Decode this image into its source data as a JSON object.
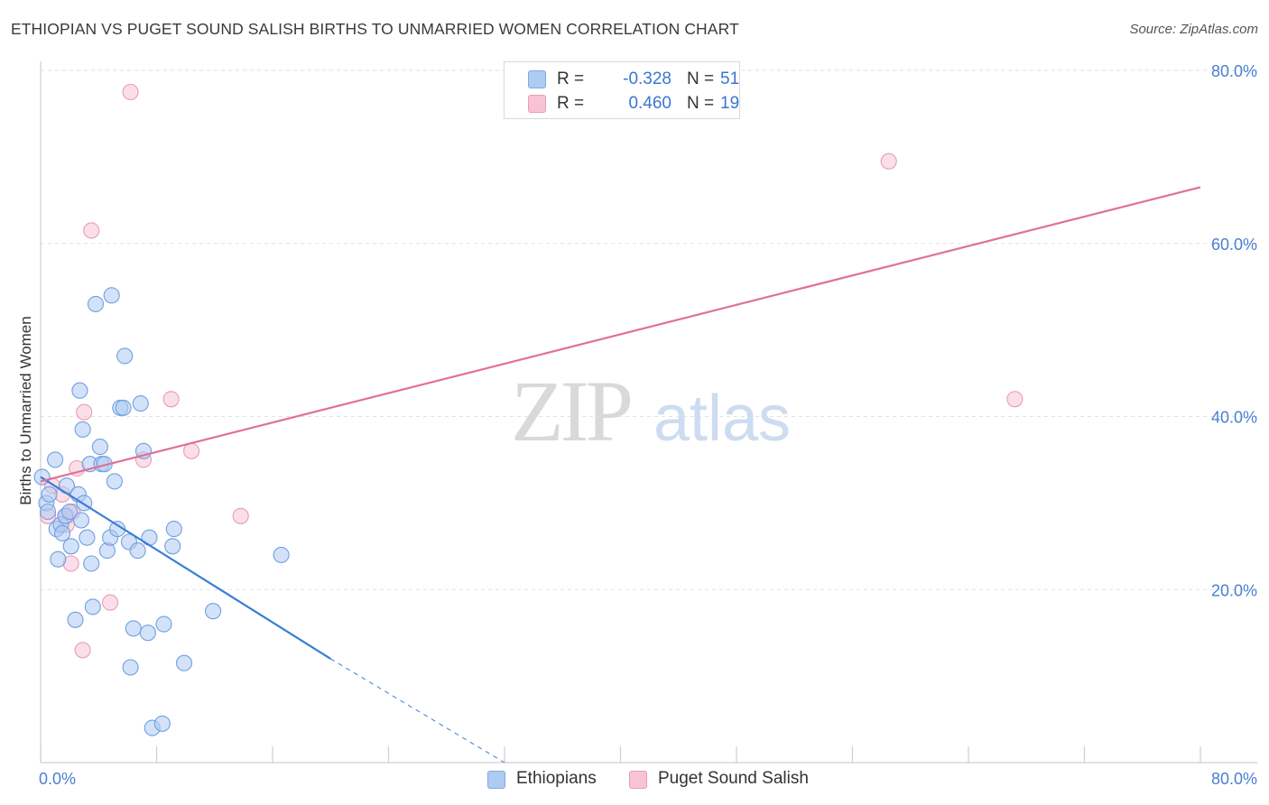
{
  "header": {
    "title": "ETHIOPIAN VS PUGET SOUND SALISH BIRTHS TO UNMARRIED WOMEN CORRELATION CHART",
    "source": "Source: ZipAtlas.com"
  },
  "watermark": {
    "zip": "ZIP",
    "atlas": "atlas"
  },
  "legend": {
    "rows": [
      {
        "r_label": "R =",
        "r_value": "-0.328",
        "n_label": "N =",
        "n_value": "51",
        "color": "#aecbf2",
        "border": "#7ea8e6"
      },
      {
        "r_label": "R =",
        "r_value": "0.460",
        "n_label": "N =",
        "n_value": "19",
        "color": "#f8c4d5",
        "border": "#ee9ab5"
      }
    ]
  },
  "bottom_legend": {
    "series1": "Ethiopians",
    "series2": "Puget Sound Salish"
  },
  "chart_data": {
    "type": "scatter",
    "title": "ETHIOPIAN VS PUGET SOUND SALISH BIRTHS TO UNMARRIED WOMEN CORRELATION CHART",
    "xlabel": "",
    "ylabel": "Births to Unmarried Women",
    "xlim": [
      0,
      80
    ],
    "ylim": [
      0,
      80
    ],
    "x_tick_labels": [
      "0.0%",
      "80.0%"
    ],
    "y_ticks": [
      20,
      40,
      60,
      80
    ],
    "y_tick_labels": [
      "20.0%",
      "40.0%",
      "60.0%",
      "80.0%"
    ],
    "colors": {
      "series1": "#3a7dd6",
      "series1_fill": "#aecbf2",
      "series2": "#e0709a",
      "series2_fill": "#f8c4d5"
    },
    "series": [
      {
        "name": "Ethiopians",
        "points": [
          [
            0.1,
            33.0
          ],
          [
            0.4,
            30.0
          ],
          [
            0.5,
            29.0
          ],
          [
            0.6,
            31.0
          ],
          [
            1.0,
            35.0
          ],
          [
            1.1,
            27.0
          ],
          [
            1.2,
            23.5
          ],
          [
            1.4,
            27.5
          ],
          [
            1.5,
            26.5
          ],
          [
            1.7,
            28.5
          ],
          [
            1.8,
            32.0
          ],
          [
            2.1,
            25.0
          ],
          [
            2.4,
            16.5
          ],
          [
            2.6,
            31.0
          ],
          [
            2.7,
            43.0
          ],
          [
            2.8,
            28.0
          ],
          [
            2.9,
            38.5
          ],
          [
            3.0,
            30.0
          ],
          [
            3.2,
            26.0
          ],
          [
            3.4,
            34.5
          ],
          [
            3.5,
            23.0
          ],
          [
            3.6,
            18.0
          ],
          [
            3.8,
            53.0
          ],
          [
            4.1,
            36.5
          ],
          [
            4.2,
            34.5
          ],
          [
            4.4,
            34.5
          ],
          [
            4.6,
            24.5
          ],
          [
            4.8,
            26.0
          ],
          [
            4.9,
            54.0
          ],
          [
            5.1,
            32.5
          ],
          [
            5.3,
            27.0
          ],
          [
            5.5,
            41.0
          ],
          [
            5.7,
            41.0
          ],
          [
            5.8,
            47.0
          ],
          [
            6.1,
            25.5
          ],
          [
            6.2,
            11.0
          ],
          [
            6.4,
            15.5
          ],
          [
            6.7,
            24.5
          ],
          [
            6.9,
            41.5
          ],
          [
            7.1,
            36.0
          ],
          [
            7.4,
            15.0
          ],
          [
            7.5,
            26.0
          ],
          [
            7.7,
            4.0
          ],
          [
            8.4,
            4.5
          ],
          [
            8.5,
            16.0
          ],
          [
            9.1,
            25.0
          ],
          [
            9.2,
            27.0
          ],
          [
            9.9,
            11.5
          ],
          [
            11.9,
            17.5
          ],
          [
            16.6,
            24.0
          ],
          [
            2.0,
            29.0
          ]
        ],
        "trend": {
          "x_start": 0,
          "y_start": 33.0,
          "x_solid_end": 20.0,
          "y_solid_end": 12.0,
          "x_dash_end": 32.0,
          "y_dash_end": 0
        }
      },
      {
        "name": "Puget Sound Salish",
        "points": [
          [
            0.5,
            28.5
          ],
          [
            0.8,
            32.0
          ],
          [
            1.5,
            31.0
          ],
          [
            1.8,
            28.5
          ],
          [
            2.1,
            23.0
          ],
          [
            2.5,
            34.0
          ],
          [
            2.9,
            13.0
          ],
          [
            3.0,
            40.5
          ],
          [
            3.5,
            61.5
          ],
          [
            4.8,
            18.5
          ],
          [
            6.2,
            77.5
          ],
          [
            7.1,
            35.0
          ],
          [
            9.0,
            42.0
          ],
          [
            10.4,
            36.0
          ],
          [
            13.8,
            28.5
          ],
          [
            58.5,
            69.5
          ],
          [
            67.2,
            42.0
          ],
          [
            1.8,
            27.5
          ],
          [
            2.2,
            29.0
          ]
        ],
        "trend": {
          "x_start": 0,
          "y_start": 32.5,
          "x_end": 80,
          "y_end": 66.5
        }
      }
    ]
  }
}
